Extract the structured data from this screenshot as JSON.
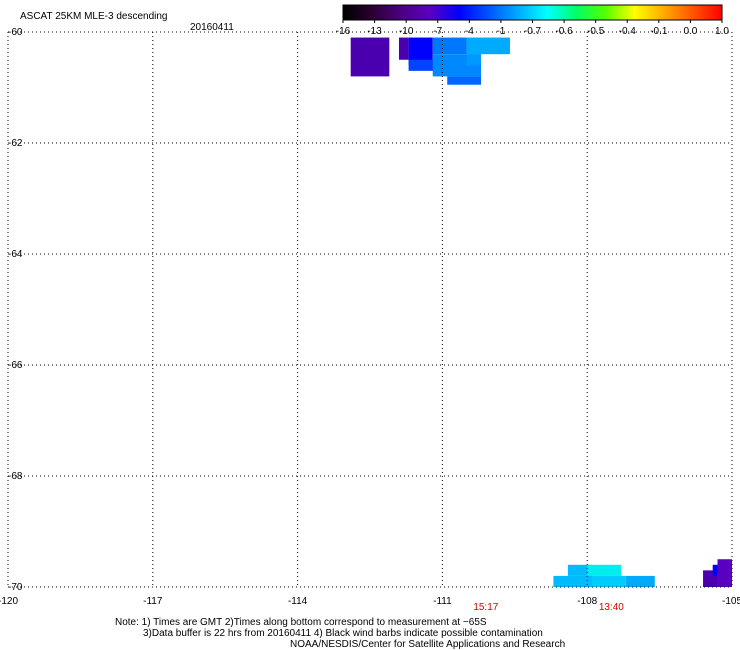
{
  "header": {
    "title": "ASCAT 25KM MLE-3 descending",
    "date": "20160411"
  },
  "colorbar": {
    "labels": [
      "-16",
      "-13",
      "-10",
      "-7",
      "-4",
      "-1",
      "-0.7",
      "-0.6",
      "-0.5",
      "-0.4",
      "-0.1",
      "0.0",
      "1.0"
    ],
    "colors": [
      "#000000",
      "#2a0030",
      "#4b0082",
      "#5a00c0",
      "#0000ff",
      "#0055ff",
      "#00aaff",
      "#00ffff",
      "#00ff66",
      "#55ff00",
      "#ffff00",
      "#ffaa00",
      "#ff5500",
      "#ff0000"
    ]
  },
  "chart_data": {
    "type": "heatmap",
    "xlim": [
      -120,
      -105
    ],
    "ylim": [
      -70,
      -60
    ],
    "x_ticks": [
      "-120",
      "-117",
      "-114",
      "-111",
      "-108",
      "-105"
    ],
    "y_ticks": [
      "-60",
      "-62",
      "-64",
      "-66",
      "-68",
      "-70"
    ],
    "x_tick_values": [
      -120,
      -117,
      -114,
      -111,
      -108,
      -105
    ],
    "y_tick_values": [
      -60,
      -62,
      -64,
      -66,
      -68,
      -70
    ],
    "grid": true,
    "time_labels": [
      {
        "text": "15:17",
        "x": -110.1
      },
      {
        "text": "13:40",
        "x": -107.5
      }
    ],
    "cells": [
      {
        "lon0": -112.9,
        "lon1": -112.1,
        "lat0": -60.8,
        "lat1": -60.1,
        "color": "#4b00b0"
      },
      {
        "lon0": -111.9,
        "lon1": -111.7,
        "lat0": -60.5,
        "lat1": -60.1,
        "color": "#4b00b0"
      },
      {
        "lon0": -111.7,
        "lon1": -111.2,
        "lat0": -60.6,
        "lat1": -60.1,
        "color": "#0000ff"
      },
      {
        "lon0": -111.7,
        "lon1": -111.0,
        "lat0": -60.7,
        "lat1": -60.5,
        "color": "#0044ff"
      },
      {
        "lon0": -111.2,
        "lon1": -110.5,
        "lat0": -60.4,
        "lat1": -60.1,
        "color": "#0077ff"
      },
      {
        "lon0": -111.2,
        "lon1": -110.2,
        "lat0": -60.8,
        "lat1": -60.4,
        "color": "#0088ff"
      },
      {
        "lon0": -110.9,
        "lon1": -110.2,
        "lat0": -60.95,
        "lat1": -60.8,
        "color": "#0066ff"
      },
      {
        "lon0": -110.5,
        "lon1": -109.6,
        "lat0": -60.4,
        "lat1": -60.1,
        "color": "#00aaff"
      },
      {
        "lon0": -110.5,
        "lon1": -110.2,
        "lat0": -60.6,
        "lat1": -60.4,
        "color": "#0099ff"
      },
      {
        "lon0": -108.4,
        "lon1": -107.9,
        "lat0": -69.8,
        "lat1": -69.6,
        "color": "#00bbff"
      },
      {
        "lon0": -108.0,
        "lon1": -107.3,
        "lat0": -69.8,
        "lat1": -69.6,
        "color": "#00eeee"
      },
      {
        "lon0": -108.7,
        "lon1": -107.9,
        "lat0": -70.0,
        "lat1": -69.8,
        "color": "#00bbff"
      },
      {
        "lon0": -107.9,
        "lon1": -107.2,
        "lat0": -70.0,
        "lat1": -69.8,
        "color": "#00ccff"
      },
      {
        "lon0": -107.2,
        "lon1": -106.6,
        "lat0": -70.0,
        "lat1": -69.8,
        "color": "#00aaff"
      },
      {
        "lon0": -105.6,
        "lon1": -105.3,
        "lat0": -70.0,
        "lat1": -69.7,
        "color": "#4b00b0"
      },
      {
        "lon0": -105.4,
        "lon1": -105.3,
        "lat0": -69.8,
        "lat1": -69.6,
        "color": "#0000ff"
      },
      {
        "lon0": -105.3,
        "lon1": -105.0,
        "lat0": -70.0,
        "lat1": -69.5,
        "color": "#5a00c0"
      }
    ]
  },
  "notes": {
    "line1": "Note: 1) Times are GMT 2)Times along bottom correspond to measurement at −65S",
    "line2": "3)Data buffer is 22 hrs from 20160411 4) Black wind barbs indicate possible contamination",
    "line3": "NOAA/NESDIS/Center for Satellite Applications and Research"
  }
}
